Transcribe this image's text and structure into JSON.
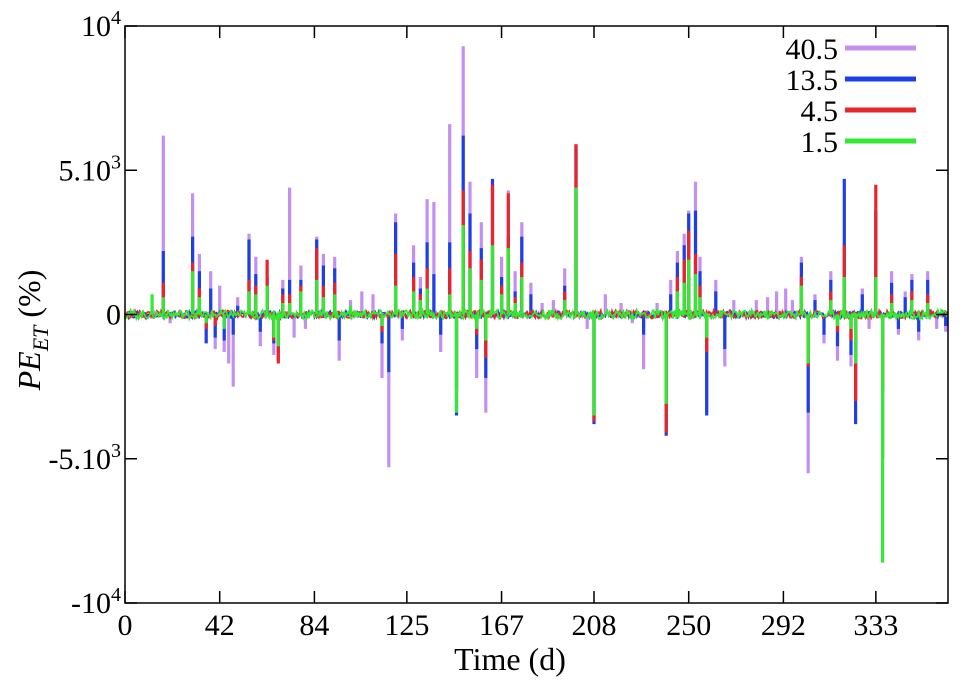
{
  "chart_data": {
    "type": "line",
    "title": "",
    "xlabel": "Time (d)",
    "ylabel_main": "PE",
    "ylabel_sub": "ET",
    "ylabel_tail": " (%)",
    "xlim": [
      0,
      365
    ],
    "ylim": [
      -10000,
      10000
    ],
    "x_ticks": [
      {
        "value": 0,
        "label": "0"
      },
      {
        "value": 42,
        "label": "42"
      },
      {
        "value": 84,
        "label": "84"
      },
      {
        "value": 125,
        "label": "125"
      },
      {
        "value": 167,
        "label": "167"
      },
      {
        "value": 208,
        "label": "208"
      },
      {
        "value": 250,
        "label": "250"
      },
      {
        "value": 292,
        "label": "292"
      },
      {
        "value": 333,
        "label": "333"
      }
    ],
    "y_ticks": [
      {
        "value": 10000,
        "base": "10",
        "sup": "4"
      },
      {
        "value": 5000,
        "base": "5.10",
        "sup": "3"
      },
      {
        "value": 0,
        "base": "0",
        "sup": ""
      },
      {
        "value": -5000,
        "base": "-5.10",
        "sup": "3"
      },
      {
        "value": -10000,
        "base": "-10",
        "sup": "4"
      }
    ],
    "grid": false,
    "legend_position": "top-right",
    "series": [
      {
        "name": "40.5",
        "color": "#c38ff0",
        "spikes": [
          [
            17,
            6200
          ],
          [
            20,
            -300
          ],
          [
            30,
            4200
          ],
          [
            33,
            2100
          ],
          [
            36,
            -400
          ],
          [
            38,
            1500
          ],
          [
            40,
            -1200
          ],
          [
            42,
            1000
          ],
          [
            44,
            -1300
          ],
          [
            46,
            -1700
          ],
          [
            48,
            -2500
          ],
          [
            50,
            600
          ],
          [
            55,
            2800
          ],
          [
            58,
            2000
          ],
          [
            60,
            -1100
          ],
          [
            63,
            1800
          ],
          [
            66,
            -1400
          ],
          [
            68,
            -1600
          ],
          [
            70,
            1200
          ],
          [
            73,
            4400
          ],
          [
            75,
            -800
          ],
          [
            78,
            1700
          ],
          [
            80,
            -500
          ],
          [
            85,
            2700
          ],
          [
            88,
            2100
          ],
          [
            93,
            2000
          ],
          [
            95,
            -1600
          ],
          [
            100,
            500
          ],
          [
            105,
            800
          ],
          [
            110,
            700
          ],
          [
            114,
            -2200
          ],
          [
            117,
            -5300
          ],
          [
            120,
            3500
          ],
          [
            123,
            -900
          ],
          [
            128,
            2400
          ],
          [
            131,
            1300
          ],
          [
            134,
            4000
          ],
          [
            137,
            3900
          ],
          [
            140,
            -1300
          ],
          [
            144,
            6600
          ],
          [
            147,
            -3200
          ],
          [
            150,
            9300
          ],
          [
            153,
            4600
          ],
          [
            156,
            -2200
          ],
          [
            158,
            3200
          ],
          [
            160,
            -3400
          ],
          [
            163,
            4500
          ],
          [
            167,
            2000
          ],
          [
            170,
            4300
          ],
          [
            173,
            1500
          ],
          [
            176,
            3200
          ],
          [
            180,
            1100
          ],
          [
            185,
            400
          ],
          [
            190,
            500
          ],
          [
            195,
            1600
          ],
          [
            200,
            5900
          ],
          [
            205,
            -500
          ],
          [
            208,
            -3700
          ],
          [
            213,
            700
          ],
          [
            220,
            400
          ],
          [
            225,
            -300
          ],
          [
            230,
            -1900
          ],
          [
            236,
            400
          ],
          [
            240,
            -4100
          ],
          [
            242,
            1200
          ],
          [
            245,
            2200
          ],
          [
            248,
            2800
          ],
          [
            250,
            3600
          ],
          [
            253,
            4600
          ],
          [
            255,
            2000
          ],
          [
            258,
            -3400
          ],
          [
            262,
            1200
          ],
          [
            266,
            -1800
          ],
          [
            270,
            500
          ],
          [
            280,
            500
          ],
          [
            285,
            600
          ],
          [
            289,
            800
          ],
          [
            293,
            900
          ],
          [
            296,
            500
          ],
          [
            300,
            2000
          ],
          [
            303,
            -5500
          ],
          [
            306,
            700
          ],
          [
            310,
            -1000
          ],
          [
            313,
            1500
          ],
          [
            316,
            -1600
          ],
          [
            319,
            2500
          ],
          [
            322,
            -1800
          ],
          [
            324,
            -3000
          ],
          [
            327,
            900
          ],
          [
            330,
            -500
          ],
          [
            333,
            1800
          ],
          [
            336,
            -1100
          ],
          [
            340,
            1500
          ],
          [
            343,
            -700
          ],
          [
            346,
            800
          ],
          [
            349,
            1400
          ],
          [
            352,
            -900
          ],
          [
            356,
            1500
          ],
          [
            360,
            -500
          ],
          [
            364,
            -600
          ]
        ]
      },
      {
        "name": "13.5",
        "color": "#1f3fe6",
        "spikes": [
          [
            17,
            2200
          ],
          [
            30,
            2700
          ],
          [
            33,
            1500
          ],
          [
            36,
            -1000
          ],
          [
            38,
            900
          ],
          [
            40,
            -800
          ],
          [
            44,
            -900
          ],
          [
            48,
            -700
          ],
          [
            50,
            300
          ],
          [
            55,
            2600
          ],
          [
            58,
            1400
          ],
          [
            60,
            -600
          ],
          [
            63,
            1300
          ],
          [
            66,
            -1000
          ],
          [
            68,
            -1300
          ],
          [
            70,
            900
          ],
          [
            73,
            1200
          ],
          [
            78,
            1200
          ],
          [
            85,
            2600
          ],
          [
            88,
            1700
          ],
          [
            93,
            1600
          ],
          [
            95,
            -900
          ],
          [
            114,
            -1000
          ],
          [
            117,
            -2000
          ],
          [
            120,
            3200
          ],
          [
            123,
            -500
          ],
          [
            128,
            1800
          ],
          [
            131,
            900
          ],
          [
            134,
            2500
          ],
          [
            137,
            1400
          ],
          [
            140,
            -700
          ],
          [
            144,
            2500
          ],
          [
            147,
            -3500
          ],
          [
            150,
            6200
          ],
          [
            153,
            3500
          ],
          [
            156,
            -1200
          ],
          [
            158,
            2300
          ],
          [
            160,
            -2200
          ],
          [
            163,
            4700
          ],
          [
            167,
            1300
          ],
          [
            170,
            2700
          ],
          [
            173,
            800
          ],
          [
            176,
            2700
          ],
          [
            180,
            700
          ],
          [
            195,
            1000
          ],
          [
            200,
            5800
          ],
          [
            208,
            -3800
          ],
          [
            230,
            -700
          ],
          [
            240,
            -4200
          ],
          [
            242,
            700
          ],
          [
            245,
            1800
          ],
          [
            248,
            2400
          ],
          [
            250,
            3500
          ],
          [
            253,
            3600
          ],
          [
            255,
            1500
          ],
          [
            258,
            -3500
          ],
          [
            262,
            800
          ],
          [
            266,
            -1200
          ],
          [
            300,
            1800
          ],
          [
            303,
            -3400
          ],
          [
            306,
            500
          ],
          [
            310,
            -700
          ],
          [
            313,
            1200
          ],
          [
            316,
            -1100
          ],
          [
            319,
            4700
          ],
          [
            322,
            -1400
          ],
          [
            324,
            -3800
          ],
          [
            327,
            700
          ],
          [
            333,
            3600
          ],
          [
            336,
            -5000
          ],
          [
            340,
            1100
          ],
          [
            343,
            -500
          ],
          [
            346,
            600
          ],
          [
            349,
            1200
          ],
          [
            352,
            -600
          ],
          [
            356,
            1200
          ],
          [
            364,
            -400
          ]
        ]
      },
      {
        "name": "4.5",
        "color": "#e8262a",
        "spikes": [
          [
            17,
            1100
          ],
          [
            30,
            1800
          ],
          [
            33,
            900
          ],
          [
            36,
            -500
          ],
          [
            40,
            -400
          ],
          [
            55,
            1200
          ],
          [
            58,
            1000
          ],
          [
            63,
            1900
          ],
          [
            66,
            -900
          ],
          [
            68,
            -1700
          ],
          [
            70,
            700
          ],
          [
            73,
            700
          ],
          [
            78,
            1000
          ],
          [
            85,
            2300
          ],
          [
            88,
            1000
          ],
          [
            93,
            1100
          ],
          [
            114,
            -600
          ],
          [
            120,
            2100
          ],
          [
            128,
            1300
          ],
          [
            131,
            700
          ],
          [
            134,
            1600
          ],
          [
            144,
            1600
          ],
          [
            147,
            -2500
          ],
          [
            150,
            4300
          ],
          [
            153,
            2200
          ],
          [
            156,
            -700
          ],
          [
            158,
            1900
          ],
          [
            160,
            -1500
          ],
          [
            163,
            4500
          ],
          [
            167,
            1000
          ],
          [
            170,
            4200
          ],
          [
            173,
            600
          ],
          [
            176,
            1800
          ],
          [
            195,
            800
          ],
          [
            200,
            5900
          ],
          [
            208,
            -3700
          ],
          [
            240,
            -4100
          ],
          [
            245,
            1300
          ],
          [
            248,
            1900
          ],
          [
            250,
            2900
          ],
          [
            253,
            2100
          ],
          [
            255,
            1000
          ],
          [
            258,
            -1300
          ],
          [
            300,
            1300
          ],
          [
            303,
            -1800
          ],
          [
            313,
            800
          ],
          [
            316,
            -600
          ],
          [
            319,
            2400
          ],
          [
            322,
            -900
          ],
          [
            324,
            -3000
          ],
          [
            333,
            4500
          ],
          [
            336,
            -2600
          ],
          [
            340,
            700
          ],
          [
            349,
            800
          ],
          [
            356,
            700
          ]
        ]
      },
      {
        "name": "1.5",
        "color": "#33ea33",
        "spikes": [
          [
            12,
            700
          ],
          [
            17,
            600
          ],
          [
            30,
            1500
          ],
          [
            33,
            600
          ],
          [
            36,
            -300
          ],
          [
            44,
            -500
          ],
          [
            55,
            800
          ],
          [
            58,
            700
          ],
          [
            63,
            1000
          ],
          [
            66,
            -800
          ],
          [
            68,
            -1100
          ],
          [
            70,
            400
          ],
          [
            73,
            400
          ],
          [
            78,
            800
          ],
          [
            85,
            1200
          ],
          [
            88,
            600
          ],
          [
            93,
            700
          ],
          [
            100,
            300
          ],
          [
            114,
            -400
          ],
          [
            120,
            1000
          ],
          [
            128,
            800
          ],
          [
            131,
            500
          ],
          [
            134,
            900
          ],
          [
            144,
            700
          ],
          [
            147,
            -3400
          ],
          [
            150,
            3100
          ],
          [
            153,
            1600
          ],
          [
            156,
            -500
          ],
          [
            158,
            1200
          ],
          [
            160,
            -900
          ],
          [
            163,
            2400
          ],
          [
            167,
            700
          ],
          [
            170,
            2300
          ],
          [
            173,
            400
          ],
          [
            176,
            1300
          ],
          [
            195,
            500
          ],
          [
            200,
            4400
          ],
          [
            208,
            -3500
          ],
          [
            240,
            -3100
          ],
          [
            245,
            800
          ],
          [
            248,
            1100
          ],
          [
            250,
            1900
          ],
          [
            253,
            1400
          ],
          [
            255,
            600
          ],
          [
            258,
            -800
          ],
          [
            300,
            1000
          ],
          [
            303,
            -1700
          ],
          [
            313,
            500
          ],
          [
            316,
            -400
          ],
          [
            319,
            1300
          ],
          [
            322,
            -500
          ],
          [
            324,
            -1700
          ],
          [
            333,
            1300
          ],
          [
            336,
            -8600
          ],
          [
            340,
            400
          ],
          [
            349,
            500
          ],
          [
            356,
            400
          ]
        ]
      }
    ]
  }
}
